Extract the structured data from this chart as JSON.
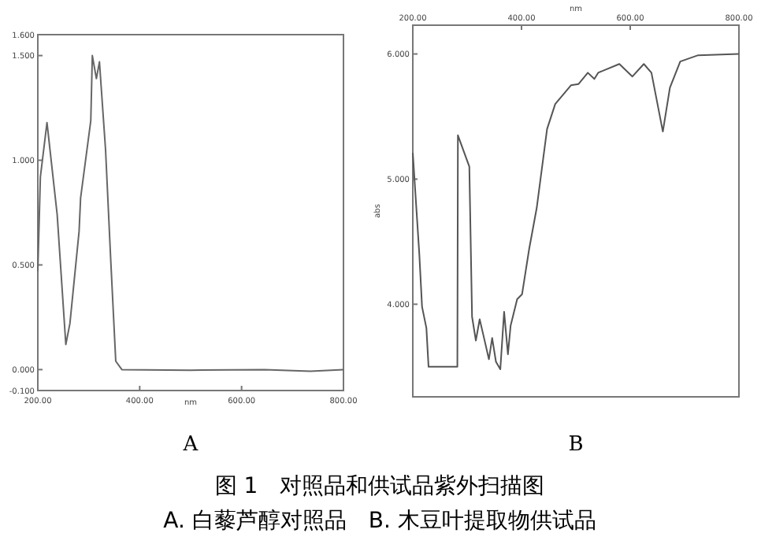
{
  "chart_data": [
    {
      "type": "line",
      "title": "A",
      "xlabel": "nm",
      "x": [
        200,
        205,
        218,
        238,
        255,
        263,
        281,
        284,
        304,
        307,
        315,
        321,
        333,
        343,
        353,
        365,
        499,
        645,
        735,
        800
      ],
      "values": [
        0.47,
        0.92,
        1.18,
        0.74,
        0.12,
        0.22,
        0.66,
        0.82,
        1.19,
        1.5,
        1.39,
        1.47,
        1.05,
        0.53,
        0.04,
        0.0,
        -0.003,
        0.0,
        -0.008,
        0.0
      ],
      "color": "#666666",
      "xlim": [
        200,
        800
      ],
      "xticks": [
        {
          "value": 200,
          "label": "200.00"
        },
        {
          "value": 400,
          "label": "400.00"
        },
        {
          "value": 600,
          "label": "600.00"
        },
        {
          "value": 800,
          "label": "800.00"
        }
      ],
      "ylim": [
        -0.1,
        1.6
      ],
      "yticks": [
        {
          "value": -0.1,
          "label": "-0.100"
        },
        {
          "value": 0,
          "label": "0.000"
        },
        {
          "value": 0.5,
          "label": "0.500"
        },
        {
          "value": 1,
          "label": "1.000"
        },
        {
          "value": 1.5,
          "label": "1.500"
        },
        {
          "value": 1.6,
          "label": "1.600"
        }
      ],
      "grid": false,
      "annotations": [
        "图 1　对照品和供试品紫外扫描图",
        "A. 白藜芦醇对照品　B. 木豆叶提取物供试品"
      ]
    },
    {
      "type": "line",
      "title": "B",
      "xlabel": "nm",
      "ylabel": "abs",
      "series": [
        {
          "color": "#555555",
          "x": [
            200,
            212,
            217,
            225,
            229,
            282,
            283,
            304,
            309,
            316,
            323,
            330,
            340,
            346,
            353,
            361,
            368,
            375,
            380,
            392,
            401,
            414,
            428,
            447,
            462,
            491,
            505,
            522,
            534,
            541,
            580,
            604,
            625,
            639,
            660,
            673,
            692,
            725,
            800
          ],
          "values": [
            5.21,
            4.4,
            3.98,
            3.81,
            3.5,
            3.5,
            5.35,
            5.1,
            3.9,
            3.71,
            3.88,
            3.75,
            3.56,
            3.73,
            3.54,
            3.48,
            3.94,
            3.6,
            3.83,
            4.04,
            4.08,
            4.44,
            4.77,
            5.4,
            5.6,
            5.75,
            5.76,
            5.85,
            5.8,
            5.85,
            5.92,
            5.82,
            5.92,
            5.85,
            5.38,
            5.73,
            5.94,
            5.99,
            6.0
          ]
        }
      ],
      "xlim": [
        200,
        800
      ],
      "xticks": [
        {
          "value": 200,
          "label": "200.00"
        },
        {
          "value": 400,
          "label": "400.00"
        },
        {
          "value": 600,
          "label": "600.00"
        },
        {
          "value": 800,
          "label": "800.00"
        }
      ],
      "ylim": [
        3.26,
        6.23
      ],
      "yticks": [
        {
          "value": 4,
          "label": "4.000"
        },
        {
          "value": 5,
          "label": "5.000"
        },
        {
          "value": 6,
          "label": "6.000"
        }
      ],
      "grid": false
    }
  ]
}
